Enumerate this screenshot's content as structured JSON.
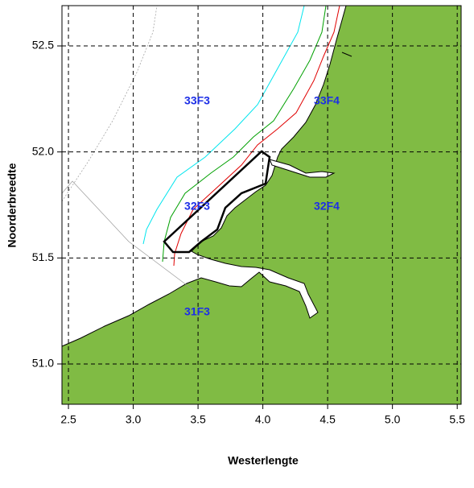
{
  "map": {
    "xlabel": "Westerlengte",
    "ylabel": "Noorderbreedte",
    "xlim": [
      2.45,
      5.53
    ],
    "ylim": [
      50.81,
      52.69
    ],
    "xticks": [
      2.5,
      {
        "value": 3,
        "label": "3.0"
      },
      3.5,
      {
        "value": 4,
        "label": "4.0"
      },
      4.5,
      {
        "value": 5,
        "label": "5.0"
      },
      5.5
    ],
    "yticks": [
      {
        "value": 51,
        "label": "51.0"
      },
      51.5,
      {
        "value": 52,
        "label": "52.0"
      },
      52.5
    ],
    "grid": true,
    "land_color": "#80bb44",
    "rectangles": [
      "33F3",
      "33F4",
      "32F3",
      "32F4",
      "31F3"
    ]
  }
}
